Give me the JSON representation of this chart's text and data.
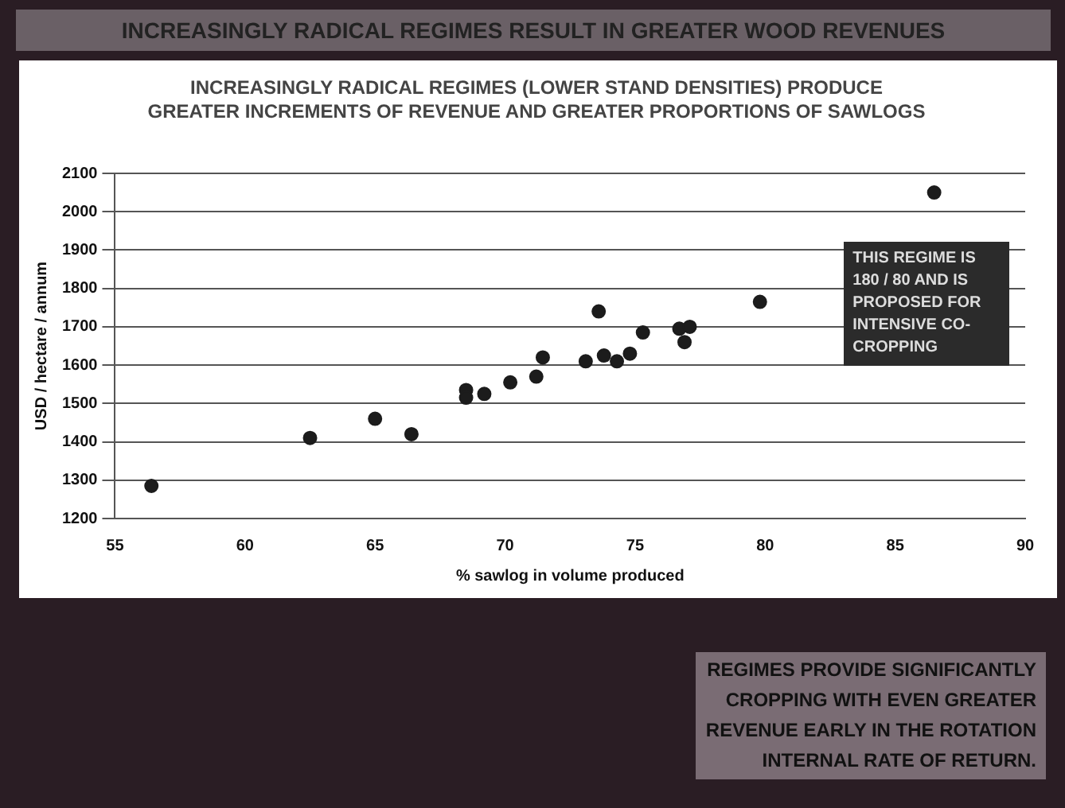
{
  "chart_data": {
    "type": "scatter",
    "title": "INCREASINGLY RADICAL REGIMES (LOWER STAND DENSITIES) PRODUCE GREATER INCREMENTS OF REVENUE AND GREATER PROPORTIONS OF SAWLOGS",
    "xlabel": "% sawlog in volume produced",
    "ylabel": "USD / hectare / annum",
    "annotations": [
      "INCREASINGLY RADICAL REGIMES RESULT IN GREATER WOOD REVENUES",
      "THIS REGIME IS 180 / 80 AND IS PROPOSED FOR INTENSIVE CO-CROPPING",
      "REGIMES PROVIDE SIGNIFICANTLY\nCROPPING WITH EVEN GREATER\nREVENUE EARLY IN THE ROTATION\nINTERNAL RATE OF RETURN."
    ],
    "series": [
      {
        "color": "#1c1c1c",
        "x": [
          56.4,
          62.5,
          65.0,
          66.4,
          68.5,
          68.5,
          69.2,
          70.2,
          71.2,
          71.45,
          73.1,
          73.6,
          73.8,
          74.3,
          74.8,
          75.3,
          76.7,
          76.9,
          77.1,
          79.8,
          86.5
        ],
        "values": [
          1285,
          1410,
          1460,
          1420,
          1535,
          1515,
          1525,
          1555,
          1570,
          1620,
          1610,
          1740,
          1625,
          1610,
          1630,
          1685,
          1695,
          1660,
          1700,
          1765,
          2050
        ]
      }
    ],
    "xlim": [
      55,
      90
    ],
    "xticks": [
      55,
      60,
      65,
      70,
      75,
      80,
      85,
      90
    ],
    "ylim": [
      1200,
      2100
    ],
    "yticks": [
      1200,
      1300,
      1400,
      1500,
      1600,
      1700,
      1800,
      1900,
      2000,
      2100
    ],
    "grid": "y",
    "legend": false,
    "marker": "circle"
  }
}
